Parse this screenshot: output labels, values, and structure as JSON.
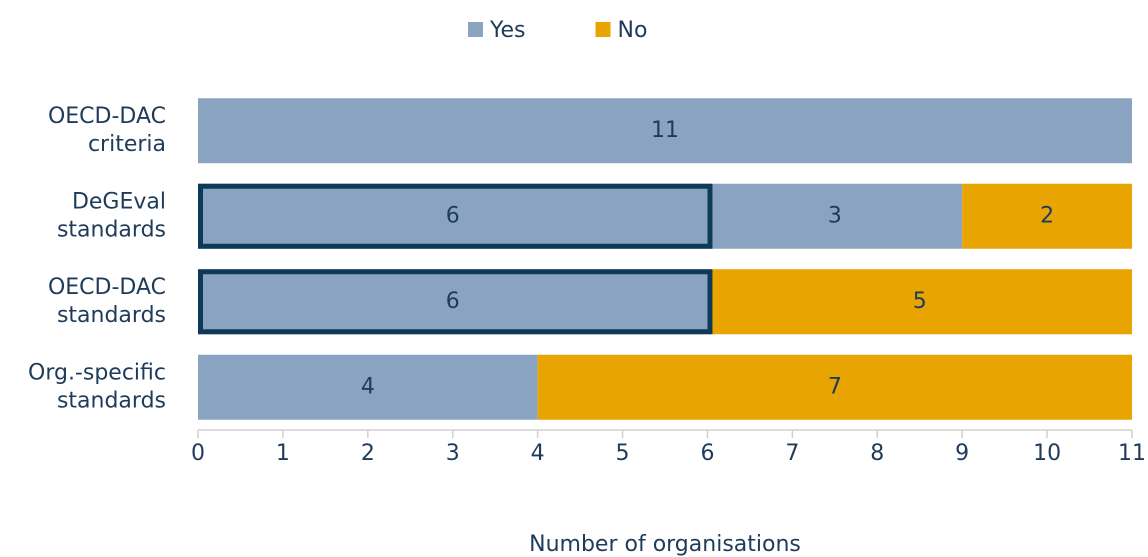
{
  "chart_data": {
    "type": "stacked_barh",
    "categories": [
      [
        "OECD-DAC",
        "criteria"
      ],
      [
        "DeGEval",
        "standards"
      ],
      [
        "OECD-DAC",
        "standards"
      ],
      [
        "Org.-specific",
        "standards"
      ]
    ],
    "series": [
      {
        "name": "Yes",
        "color": "#8aa3c1",
        "values": [
          11,
          6,
          6,
          4
        ],
        "outline": [
          false,
          true,
          true,
          false
        ]
      },
      {
        "color": "#8aa3c1",
        "values": [
          null,
          3,
          null,
          null
        ]
      },
      {
        "name": "No",
        "color": "#e8a400",
        "values": [
          null,
          2,
          5,
          7
        ]
      }
    ],
    "xlim": [
      0,
      11
    ],
    "xticks": [
      0,
      1,
      2,
      3,
      4,
      5,
      6,
      7,
      8,
      9,
      10,
      11
    ],
    "xlabel": "Number of organisations",
    "legend": "top",
    "outline_color": "#0e3a5a"
  }
}
